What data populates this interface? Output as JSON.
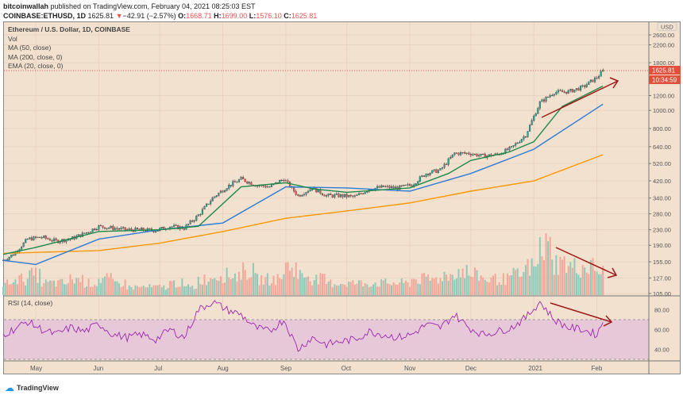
{
  "header": {
    "author": "bitcoinwallah",
    "published": "published on TradingView.com, February 04, 2021 08:25:03 EST",
    "symbol": "COINBASE:ETHUSD, 1D",
    "last": "1625.81",
    "change": "−42.91 (−2.57%)",
    "o_label": "O:",
    "o": "1668.71",
    "h_label": "H:",
    "h": "1699.00",
    "l_label": "L:",
    "l": "1576.10",
    "c_label": "C:",
    "c": "1625.81"
  },
  "legend": [
    "Ethereum / U.S. Dollar, 1D, COINBASE",
    "Vol",
    "MA (50, close)",
    "MA (200, close, 0)",
    "EMA (20, close, 0)"
  ],
  "footer": {
    "brand": "TradingView"
  },
  "colors": {
    "background": "#f3e1cf",
    "up": "#26a69a",
    "down": "#ef5350",
    "ma50": "#2b7bd8",
    "ma200": "#ff9800",
    "ema20": "#1b8a4a",
    "rsi": "#9c27b0",
    "rsi_band": "#e6c8d8",
    "annotation": "#a01818"
  },
  "chart_data": [
    {
      "type": "candlestick",
      "scale": "log",
      "currency": "USD",
      "price_ticks": [
        "2600.00",
        "2200.00",
        "1800.00",
        "1200.00",
        "1000.00",
        "800.00",
        "640.00",
        "520.00",
        "420.00",
        "340.00",
        "280.00",
        "230.00",
        "190.00",
        "155.00",
        "127.00",
        "105.00"
      ],
      "last_price_label": "1625.81",
      "countdown_label": "10:34:59",
      "currency_label": "USD",
      "x_ticks": [
        "May",
        "Jun",
        "Jul",
        "Aug",
        "Sep",
        "Oct",
        "Nov",
        "Dec",
        "2021",
        "Feb"
      ],
      "weekly_close": {
        "dates": [
          "2020-04-15",
          "2020-04-20",
          "2020-04-27",
          "2020-05-04",
          "2020-05-11",
          "2020-05-18",
          "2020-05-25",
          "2020-06-01",
          "2020-06-08",
          "2020-06-15",
          "2020-06-22",
          "2020-06-29",
          "2020-07-06",
          "2020-07-13",
          "2020-07-20",
          "2020-07-27",
          "2020-08-03",
          "2020-08-10",
          "2020-08-17",
          "2020-08-24",
          "2020-08-31",
          "2020-09-07",
          "2020-09-14",
          "2020-09-21",
          "2020-09-28",
          "2020-10-05",
          "2020-10-12",
          "2020-10-19",
          "2020-10-26",
          "2020-11-02",
          "2020-11-09",
          "2020-11-16",
          "2020-11-23",
          "2020-11-30",
          "2020-12-07",
          "2020-12-14",
          "2020-12-21",
          "2020-12-28",
          "2021-01-04",
          "2021-01-11",
          "2021-01-18",
          "2021-01-25",
          "2021-02-01",
          "2021-02-04"
        ],
        "values": [
          158,
          170,
          205,
          210,
          200,
          205,
          220,
          240,
          235,
          230,
          230,
          228,
          240,
          235,
          275,
          340,
          390,
          430,
          400,
          390,
          430,
          350,
          385,
          350,
          350,
          345,
          380,
          390,
          385,
          400,
          460,
          480,
          590,
          590,
          570,
          580,
          630,
          740,
          1100,
          1250,
          1260,
          1330,
          1500,
          1626
        ]
      },
      "ma50": {
        "dates": [
          "2020-04-15",
          "2020-05-01",
          "2020-06-01",
          "2020-07-01",
          "2020-08-01",
          "2020-09-01",
          "2020-10-01",
          "2020-11-01",
          "2020-12-01",
          "2021-01-01",
          "2021-02-04"
        ],
        "values": [
          158,
          150,
          205,
          230,
          250,
          390,
          385,
          370,
          460,
          620,
          1080
        ]
      },
      "ma200": {
        "dates": [
          "2020-04-15",
          "2020-06-01",
          "2020-07-01",
          "2020-08-01",
          "2020-09-01",
          "2020-10-01",
          "2020-11-01",
          "2020-12-01",
          "2021-01-01",
          "2021-02-04"
        ],
        "values": [
          172,
          178,
          195,
          225,
          265,
          290,
          320,
          370,
          420,
          580
        ]
      },
      "ema20": {
        "dates": [
          "2020-04-15",
          "2020-05-01",
          "2020-06-01",
          "2020-07-01",
          "2020-07-20",
          "2020-08-10",
          "2020-09-01",
          "2020-09-15",
          "2020-10-01",
          "2020-11-01",
          "2020-11-20",
          "2020-12-01",
          "2020-12-20",
          "2021-01-01",
          "2021-01-15",
          "2021-02-04"
        ],
        "values": [
          170,
          185,
          225,
          230,
          240,
          390,
          410,
          380,
          365,
          385,
          460,
          540,
          600,
          680,
          1050,
          1350
        ]
      },
      "volume_relative": [
        3,
        4,
        5,
        3,
        3,
        4,
        3,
        4,
        3,
        2,
        2,
        2,
        3,
        2,
        4,
        5,
        5,
        6,
        4,
        4,
        7,
        5,
        4,
        3,
        3,
        3,
        3,
        3,
        3,
        4,
        4,
        5,
        6,
        5,
        4,
        4,
        5,
        7,
        12,
        8,
        7,
        7,
        6,
        5
      ]
    },
    {
      "type": "line",
      "title": "RSI (14, close)",
      "y_ticks": [
        "80.00",
        "60.00",
        "40.00"
      ],
      "band": [
        30,
        70
      ],
      "ylim": [
        20,
        95
      ],
      "values": [
        55,
        60,
        68,
        60,
        55,
        62,
        58,
        66,
        55,
        52,
        55,
        50,
        60,
        52,
        80,
        88,
        80,
        75,
        62,
        58,
        70,
        40,
        52,
        45,
        48,
        50,
        58,
        55,
        52,
        55,
        65,
        62,
        75,
        62,
        55,
        58,
        62,
        72,
        88,
        70,
        62,
        60,
        55,
        68
      ]
    }
  ]
}
